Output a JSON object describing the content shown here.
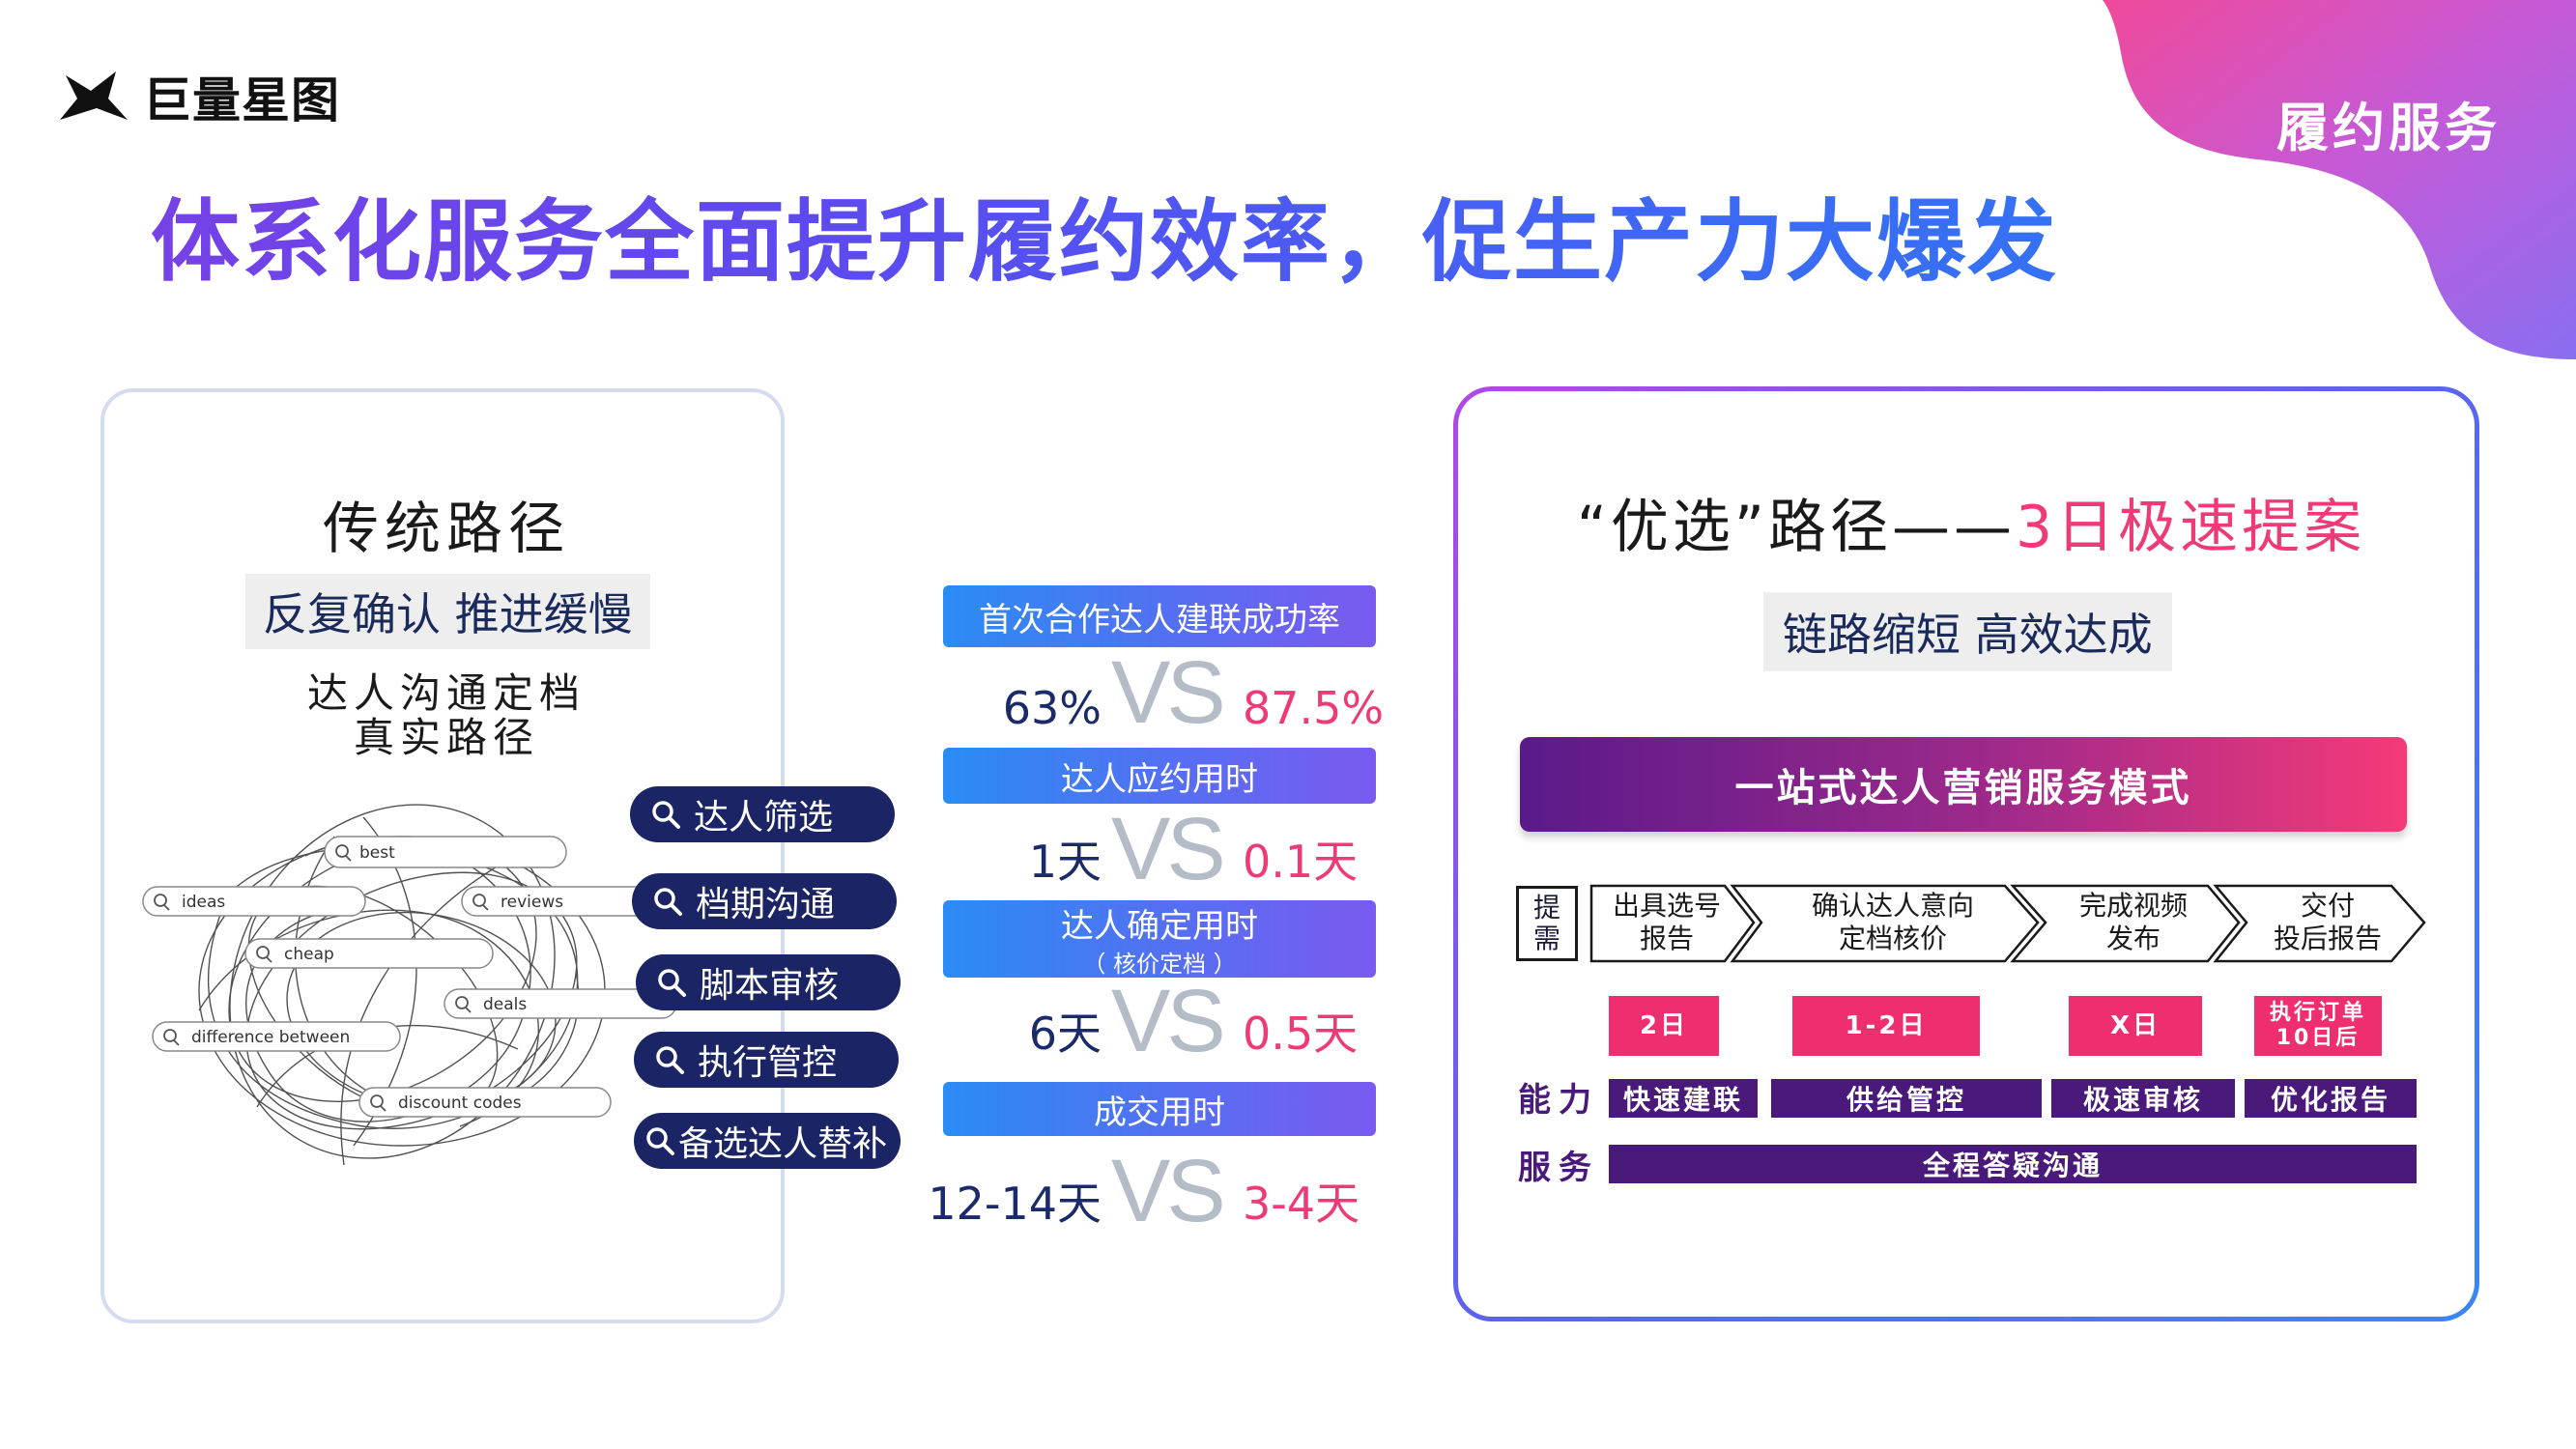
{
  "brand": {
    "name": "巨量星图"
  },
  "section_label": "履约服务",
  "headline": "体系化服务全面提升履约效率，促生产力大爆发",
  "left_panel": {
    "title": "传统路径",
    "tag": "反复确认 推进缓慢",
    "sub_line1": "达人沟通定档",
    "sub_line2": "真实路径",
    "search_words": [
      "best",
      "ideas",
      "reviews",
      "cheap",
      "deals",
      "difference between",
      "discount codes"
    ],
    "pills": [
      "达人筛选",
      "档期沟通",
      "脚本审核",
      "执行管控",
      "备选达人替补"
    ]
  },
  "comparison": [
    {
      "label": "首次合作达人建联成功率",
      "sublabel": "",
      "traditional": "63%",
      "vs": "VS",
      "preferred": "87.5%"
    },
    {
      "label": "达人应约用时",
      "sublabel": "",
      "traditional": "1天",
      "vs": "VS",
      "preferred": "0.1天"
    },
    {
      "label": "达人确定用时",
      "sublabel": "（ 核价定档 ）",
      "traditional": "6天",
      "vs": "VS",
      "preferred": "0.5天"
    },
    {
      "label": "成交用时",
      "sublabel": "",
      "traditional": "12-14天",
      "vs": "VS",
      "preferred": "3-4天"
    }
  ],
  "right_panel": {
    "title_main": "“优选”路径——",
    "title_highlight": "3日极速提案",
    "tag": "链路缩短 高效达成",
    "banner": "一站式达人营销服务模式",
    "proposal_box": [
      "提",
      "需"
    ],
    "steps": [
      {
        "line1": "出具选号",
        "line2": "报告"
      },
      {
        "line1": "确认达人意向",
        "line2": "定档核价"
      },
      {
        "line1": "完成视频",
        "line2": "发布"
      },
      {
        "line1": "交付",
        "line2": "投后报告"
      }
    ],
    "times": [
      {
        "line1": "2日",
        "line2": ""
      },
      {
        "line1": "1-2日",
        "line2": ""
      },
      {
        "line1": "X日",
        "line2": ""
      },
      {
        "line1": "执行订单",
        "line2": "10日后"
      }
    ],
    "capability_label": "能力",
    "capabilities": [
      "快速建联",
      "供给管控",
      "极速审核",
      "优化报告"
    ],
    "service_label": "服务",
    "service": "全程答疑沟通"
  },
  "colors": {
    "accent_pink": "#ee3a78",
    "navy": "#1b2566",
    "purple": "#4a1a7a"
  }
}
